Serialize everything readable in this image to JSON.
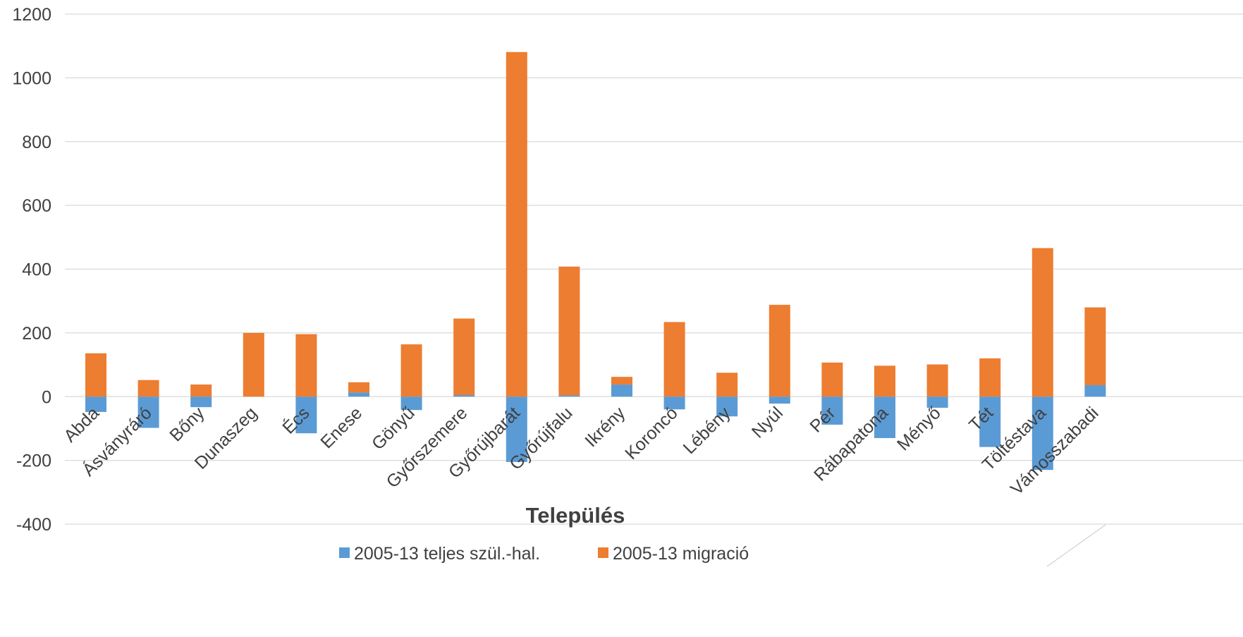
{
  "chart_data": {
    "type": "bar",
    "stacked": true,
    "categories": [
      "Abda",
      "Ásványráró",
      "Bőny",
      "Dunaszeg",
      "Écs",
      "Enese",
      "Gönyű",
      "Győrszemere",
      "Győrújbarát",
      "Győrújfalu",
      "Ikrény",
      "Koroncó",
      "Lébény",
      "Nyúl",
      "Pér",
      "Rábapatona",
      "Ményő",
      "Tét",
      "Töltéstava",
      "Vámosszabadi"
    ],
    "series": [
      {
        "name": "2005-13 teljes szül.-hal.",
        "color": "#5b9bd5",
        "values": [
          -48,
          -98,
          -33,
          0,
          -115,
          13,
          -42,
          5,
          -205,
          4,
          38,
          -40,
          -62,
          -22,
          -88,
          -130,
          -35,
          -158,
          -230,
          36
        ]
      },
      {
        "name": "2005-13 migració",
        "color": "#ed7d31",
        "values": [
          136,
          52,
          38,
          200,
          196,
          32,
          164,
          240,
          1081,
          404,
          24,
          234,
          75,
          288,
          107,
          97,
          101,
          120,
          466,
          244
        ]
      }
    ],
    "xlabel": "Település",
    "ylabel": "",
    "ylim": [
      -400,
      1200
    ],
    "yticks": [
      "1200",
      "1000",
      "800",
      "600",
      "400",
      "200",
      "0",
      "-200",
      "-400"
    ],
    "grid": true,
    "legend_position": "bottom"
  }
}
